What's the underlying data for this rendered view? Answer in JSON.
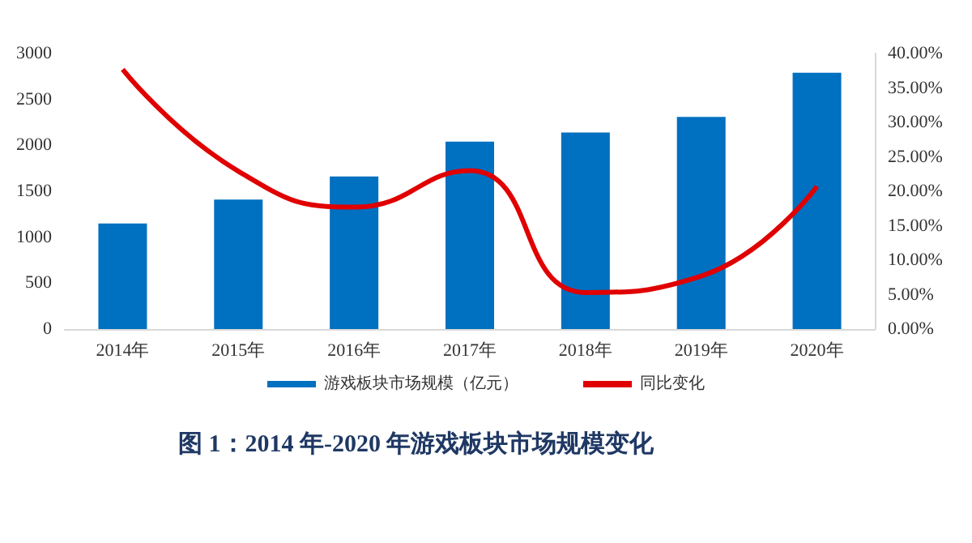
{
  "chart_data": {
    "type": "bar",
    "title": "图 1：2014 年-2020 年游戏板块市场规模变化",
    "categories": [
      "2014年",
      "2015年",
      "2016年",
      "2017年",
      "2018年",
      "2019年",
      "2020年"
    ],
    "series": [
      {
        "name": "游戏板块市场规模（亿元）",
        "color": "#0070c0",
        "values": [
          1150,
          1410,
          1660,
          2040,
          2140,
          2310,
          2790
        ]
      },
      {
        "name": "同比变化",
        "type": "line",
        "axis": "y2",
        "color": "#e00000",
        "values": [
          37.7,
          22.9,
          17.7,
          23.0,
          5.3,
          7.7,
          20.7
        ]
      }
    ],
    "ylim": [
      0,
      3000
    ],
    "yticks": [
      0,
      500,
      1000,
      1500,
      2000,
      2500,
      3000
    ],
    "y2lim": [
      0,
      40
    ],
    "y2ticks": [
      {
        "value": 0,
        "label": "0.00%"
      },
      {
        "value": 5,
        "label": "5.00%"
      },
      {
        "value": 10,
        "label": "10.00%"
      },
      {
        "value": 15,
        "label": "15.00%"
      },
      {
        "value": 20,
        "label": "20.00%"
      },
      {
        "value": 25,
        "label": "25.00%"
      },
      {
        "value": 30,
        "label": "30.00%"
      },
      {
        "value": 35,
        "label": "35.00%"
      },
      {
        "value": 40,
        "label": "40.00%"
      }
    ],
    "grid": false,
    "legend": "bottom",
    "marker": "none",
    "line_style": "solid"
  }
}
